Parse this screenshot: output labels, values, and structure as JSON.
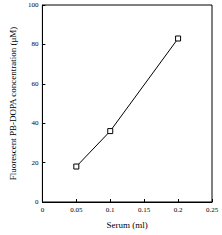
{
  "chart_data": {
    "type": "line",
    "x_label": "Serum (ml)",
    "y_label": "Fluorescent PB-DOPA concentration (μM)",
    "x": [
      0.05,
      0.1,
      0.2
    ],
    "values": [
      18,
      36,
      83
    ],
    "color": "#000000",
    "marker": "square",
    "line_style": "solid",
    "xlim": [
      0,
      0.25
    ],
    "xticks": [
      0,
      0.05,
      0.1,
      0.15,
      0.2,
      0.25
    ],
    "ylim": [
      0,
      100
    ],
    "yticks": [
      0,
      20,
      40,
      60,
      80,
      100
    ],
    "grid": false
  }
}
